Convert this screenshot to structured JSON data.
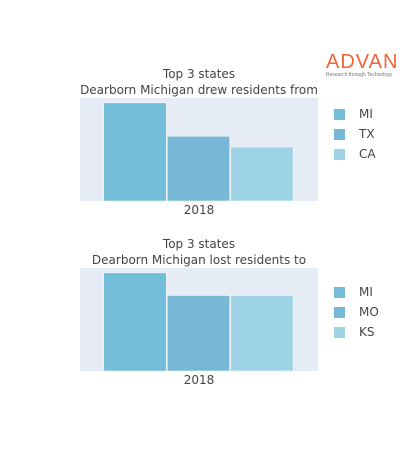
{
  "logo": {
    "name": "ADVAN",
    "tagline": "Research through Technology"
  },
  "colors": {
    "background": "#ffffff",
    "plot_bg": "#e5ecf6",
    "logo": "#f0633a"
  },
  "chart_data": [
    {
      "type": "bar",
      "title": "Top 3 states",
      "subtitle": "Dearborn Michigan drew residents from",
      "categories": [
        "2018"
      ],
      "series": [
        {
          "name": "MI",
          "values": [
            100
          ],
          "color": "#74bdd8"
        },
        {
          "name": "TX",
          "values": [
            66
          ],
          "color": "#76b8d6"
        },
        {
          "name": "CA",
          "values": [
            55
          ],
          "color": "#9ed3e5"
        }
      ],
      "ylim": [
        0,
        105
      ],
      "grid": false,
      "legend": "right"
    },
    {
      "type": "bar",
      "title": "Top 3 states",
      "subtitle": "Dearborn Michigan lost residents to",
      "categories": [
        "2018"
      ],
      "series": [
        {
          "name": "MI",
          "values": [
            100
          ],
          "color": "#74bdd8"
        },
        {
          "name": "MO",
          "values": [
            77
          ],
          "color": "#76b8d6"
        },
        {
          "name": "KS",
          "values": [
            77
          ],
          "color": "#9ed3e5"
        }
      ],
      "ylim": [
        0,
        105
      ],
      "grid": false,
      "legend": "right"
    }
  ]
}
